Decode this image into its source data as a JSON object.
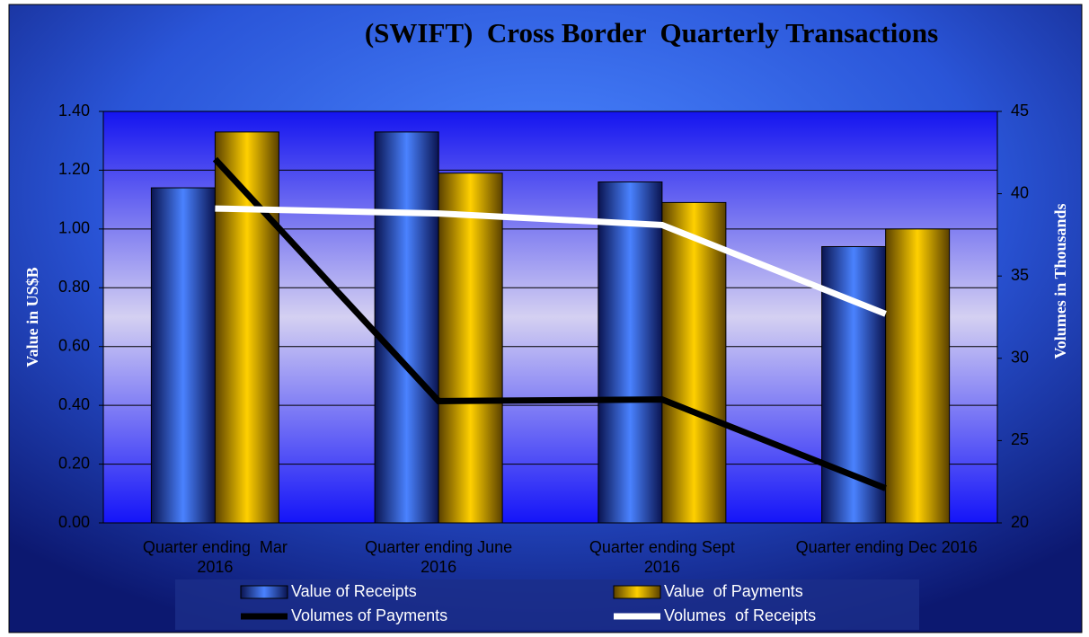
{
  "chart_data": {
    "type": "bar",
    "title": "(SWIFT)  Cross Border  Quarterly Transactions",
    "y_label": "Value in US$B",
    "y2_label": "Volumes in Thousands",
    "categories": [
      "Quarter ending  Mar 2016",
      "Quarter ending June 2016",
      "Quarter ending Sept 2016",
      "Quarter ending Dec 2016"
    ],
    "series": [
      {
        "name": "Value of Receipts",
        "color": "#3a6cf0",
        "values": [
          1.14,
          1.33,
          1.16,
          0.94
        ]
      },
      {
        "name": "Value  of Payments",
        "color": "#ffc800",
        "values": [
          1.33,
          1.19,
          1.09,
          1.0
        ]
      },
      {
        "name": "Volumes of Payments",
        "color": "#000000",
        "type": "line",
        "axis": "y2",
        "values": [
          42.1,
          27.4,
          27.5,
          22.1
        ]
      },
      {
        "name": "Volumes  of Receipts",
        "color": "#ffffff",
        "type": "line",
        "axis": "y2",
        "values": [
          39.1,
          38.8,
          38.1,
          32.7
        ]
      }
    ],
    "ylim": [
      0,
      1.4
    ],
    "yticks": [
      {
        "value": 0,
        "label": "0.00"
      },
      {
        "value": 0.2,
        "label": "0.20"
      },
      {
        "value": 0.4,
        "label": "0.40"
      },
      {
        "value": 0.6,
        "label": "0.60"
      },
      {
        "value": 0.8,
        "label": "0.80"
      },
      {
        "value": 1.0,
        "label": "1.00"
      },
      {
        "value": 1.2,
        "label": "1.20"
      },
      {
        "value": 1.4,
        "label": "1.40"
      }
    ],
    "y2lim": [
      20,
      45
    ],
    "y2ticks": [
      20,
      25,
      30,
      35,
      40,
      45
    ],
    "grid": true,
    "legend": "bottom"
  }
}
